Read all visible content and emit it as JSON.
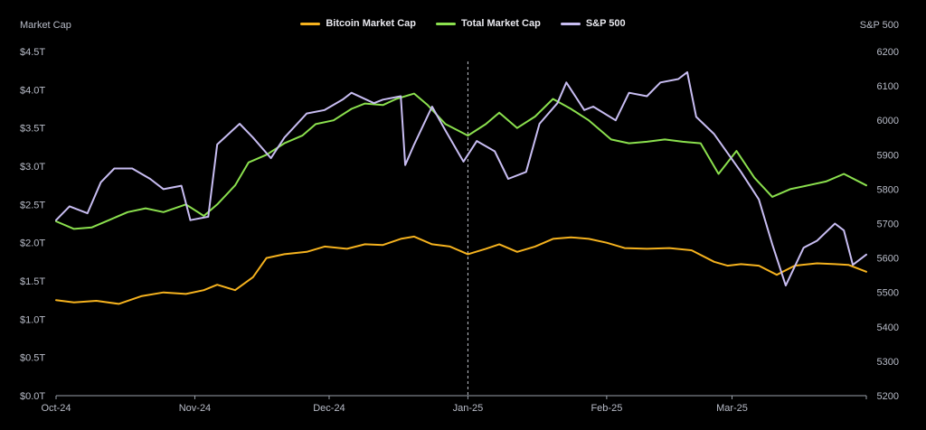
{
  "chart_data": {
    "type": "line",
    "y_left_label": "Market Cap",
    "y_right_label": "S&P 500",
    "y_left_ticks": [
      "$0.0T",
      "$0.5T",
      "$1.0T",
      "$1.5T",
      "$2.0T",
      "$2.5T",
      "$3.0T",
      "$3.5T",
      "$4.0T",
      "$4.5T"
    ],
    "y_left_range": [
      0,
      4.5
    ],
    "y_right_ticks": [
      "5200",
      "5300",
      "5400",
      "5500",
      "5600",
      "5700",
      "5800",
      "5900",
      "6000",
      "6100",
      "6200"
    ],
    "y_right_range": [
      5200,
      6200
    ],
    "x_ticks": [
      "Oct-24",
      "Nov-24",
      "Dec-24",
      "Jan-25",
      "Feb-25",
      "Mar-25"
    ],
    "x_range": [
      "2024-10-01",
      "2025-03-31"
    ],
    "marker_date": "2025-01-01",
    "series": [
      {
        "name": "Bitcoin Market Cap",
        "color": "#f5b21e",
        "axis": "left",
        "values": [
          [
            "2024-10-01",
            1.25
          ],
          [
            "2024-10-05",
            1.22
          ],
          [
            "2024-10-10",
            1.24
          ],
          [
            "2024-10-15",
            1.2
          ],
          [
            "2024-10-20",
            1.3
          ],
          [
            "2024-10-25",
            1.35
          ],
          [
            "2024-10-30",
            1.33
          ],
          [
            "2024-11-03",
            1.38
          ],
          [
            "2024-11-06",
            1.45
          ],
          [
            "2024-11-10",
            1.38
          ],
          [
            "2024-11-14",
            1.55
          ],
          [
            "2024-11-17",
            1.8
          ],
          [
            "2024-11-21",
            1.85
          ],
          [
            "2024-11-26",
            1.88
          ],
          [
            "2024-11-30",
            1.95
          ],
          [
            "2024-12-05",
            1.92
          ],
          [
            "2024-12-09",
            1.98
          ],
          [
            "2024-12-13",
            1.97
          ],
          [
            "2024-12-17",
            2.05
          ],
          [
            "2024-12-20",
            2.08
          ],
          [
            "2024-12-24",
            1.98
          ],
          [
            "2024-12-28",
            1.95
          ],
          [
            "2025-01-01",
            1.85
          ],
          [
            "2025-01-05",
            1.92
          ],
          [
            "2025-01-08",
            1.98
          ],
          [
            "2025-01-12",
            1.88
          ],
          [
            "2025-01-16",
            1.95
          ],
          [
            "2025-01-20",
            2.05
          ],
          [
            "2025-01-24",
            2.07
          ],
          [
            "2025-01-28",
            2.05
          ],
          [
            "2025-02-01",
            2.0
          ],
          [
            "2025-02-05",
            1.93
          ],
          [
            "2025-02-10",
            1.92
          ],
          [
            "2025-02-15",
            1.93
          ],
          [
            "2025-02-20",
            1.9
          ],
          [
            "2025-02-25",
            1.75
          ],
          [
            "2025-02-28",
            1.7
          ],
          [
            "2025-03-03",
            1.72
          ],
          [
            "2025-03-07",
            1.7
          ],
          [
            "2025-03-11",
            1.58
          ],
          [
            "2025-03-15",
            1.7
          ],
          [
            "2025-03-20",
            1.73
          ],
          [
            "2025-03-24",
            1.72
          ],
          [
            "2025-03-27",
            1.71
          ],
          [
            "2025-03-31",
            1.62
          ]
        ]
      },
      {
        "name": "Total Market Cap",
        "color": "#8be04e",
        "axis": "left",
        "values": [
          [
            "2024-10-01",
            2.28
          ],
          [
            "2024-10-05",
            2.18
          ],
          [
            "2024-10-09",
            2.2
          ],
          [
            "2024-10-13",
            2.3
          ],
          [
            "2024-10-17",
            2.4
          ],
          [
            "2024-10-21",
            2.45
          ],
          [
            "2024-10-25",
            2.4
          ],
          [
            "2024-10-30",
            2.5
          ],
          [
            "2024-11-03",
            2.35
          ],
          [
            "2024-11-06",
            2.5
          ],
          [
            "2024-11-10",
            2.75
          ],
          [
            "2024-11-13",
            3.05
          ],
          [
            "2024-11-17",
            3.15
          ],
          [
            "2024-11-21",
            3.3
          ],
          [
            "2024-11-25",
            3.4
          ],
          [
            "2024-11-28",
            3.55
          ],
          [
            "2024-12-02",
            3.6
          ],
          [
            "2024-12-06",
            3.75
          ],
          [
            "2024-12-09",
            3.82
          ],
          [
            "2024-12-13",
            3.8
          ],
          [
            "2024-12-16",
            3.88
          ],
          [
            "2024-12-20",
            3.95
          ],
          [
            "2024-12-23",
            3.8
          ],
          [
            "2024-12-27",
            3.55
          ],
          [
            "2025-01-01",
            3.4
          ],
          [
            "2025-01-05",
            3.55
          ],
          [
            "2025-01-08",
            3.7
          ],
          [
            "2025-01-12",
            3.5
          ],
          [
            "2025-01-16",
            3.65
          ],
          [
            "2025-01-20",
            3.88
          ],
          [
            "2025-01-24",
            3.75
          ],
          [
            "2025-01-28",
            3.6
          ],
          [
            "2025-02-02",
            3.35
          ],
          [
            "2025-02-06",
            3.3
          ],
          [
            "2025-02-10",
            3.32
          ],
          [
            "2025-02-14",
            3.35
          ],
          [
            "2025-02-18",
            3.32
          ],
          [
            "2025-02-22",
            3.3
          ],
          [
            "2025-02-26",
            2.9
          ],
          [
            "2025-03-02",
            3.2
          ],
          [
            "2025-03-06",
            2.85
          ],
          [
            "2025-03-10",
            2.6
          ],
          [
            "2025-03-14",
            2.7
          ],
          [
            "2025-03-18",
            2.75
          ],
          [
            "2025-03-22",
            2.8
          ],
          [
            "2025-03-26",
            2.9
          ],
          [
            "2025-03-31",
            2.75
          ]
        ]
      },
      {
        "name": "S&P 500",
        "color": "#c8bdf2",
        "axis": "right",
        "values": [
          [
            "2024-10-01",
            5710
          ],
          [
            "2024-10-04",
            5750
          ],
          [
            "2024-10-08",
            5730
          ],
          [
            "2024-10-11",
            5820
          ],
          [
            "2024-10-14",
            5860
          ],
          [
            "2024-10-18",
            5860
          ],
          [
            "2024-10-22",
            5830
          ],
          [
            "2024-10-25",
            5800
          ],
          [
            "2024-10-29",
            5810
          ],
          [
            "2024-10-31",
            5710
          ],
          [
            "2024-11-04",
            5720
          ],
          [
            "2024-11-06",
            5930
          ],
          [
            "2024-11-11",
            5990
          ],
          [
            "2024-11-14",
            5950
          ],
          [
            "2024-11-18",
            5890
          ],
          [
            "2024-11-21",
            5950
          ],
          [
            "2024-11-26",
            6020
          ],
          [
            "2024-11-30",
            6030
          ],
          [
            "2024-12-04",
            6060
          ],
          [
            "2024-12-06",
            6080
          ],
          [
            "2024-12-11",
            6050
          ],
          [
            "2024-12-13",
            6060
          ],
          [
            "2024-12-17",
            6070
          ],
          [
            "2024-12-18",
            5870
          ],
          [
            "2024-12-20",
            5930
          ],
          [
            "2024-12-24",
            6040
          ],
          [
            "2024-12-27",
            5970
          ],
          [
            "2024-12-31",
            5880
          ],
          [
            "2025-01-03",
            5940
          ],
          [
            "2025-01-07",
            5910
          ],
          [
            "2025-01-10",
            5830
          ],
          [
            "2025-01-14",
            5850
          ],
          [
            "2025-01-17",
            5990
          ],
          [
            "2025-01-21",
            6050
          ],
          [
            "2025-01-23",
            6110
          ],
          [
            "2025-01-27",
            6030
          ],
          [
            "2025-01-29",
            6040
          ],
          [
            "2025-02-03",
            6000
          ],
          [
            "2025-02-06",
            6080
          ],
          [
            "2025-02-10",
            6070
          ],
          [
            "2025-02-13",
            6110
          ],
          [
            "2025-02-17",
            6120
          ],
          [
            "2025-02-19",
            6140
          ],
          [
            "2025-02-21",
            6010
          ],
          [
            "2025-02-25",
            5960
          ],
          [
            "2025-03-03",
            5850
          ],
          [
            "2025-03-07",
            5770
          ],
          [
            "2025-03-10",
            5640
          ],
          [
            "2025-03-13",
            5520
          ],
          [
            "2025-03-17",
            5630
          ],
          [
            "2025-03-20",
            5650
          ],
          [
            "2025-03-24",
            5700
          ],
          [
            "2025-03-26",
            5680
          ],
          [
            "2025-03-28",
            5580
          ],
          [
            "2025-03-31",
            5610
          ]
        ]
      }
    ]
  }
}
